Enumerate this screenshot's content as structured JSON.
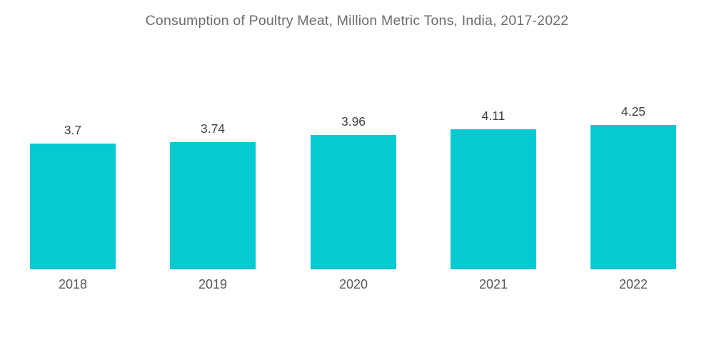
{
  "chart_data": {
    "type": "bar",
    "title": "Consumption of Poultry Meat, Million Metric Tons, India, 2017-2022",
    "categories": [
      "2018",
      "2019",
      "2020",
      "2021",
      "2022"
    ],
    "values": [
      3.7,
      3.74,
      3.96,
      4.11,
      4.25
    ],
    "data_labels": [
      "3.7",
      "3.74",
      "3.96",
      "4.11",
      "4.25"
    ],
    "xlabel": "",
    "ylabel": "",
    "ylim": [
      0,
      6.6
    ],
    "grid": false,
    "legend": false,
    "bar_color": "#06c9d2",
    "value_label_color": "#414144",
    "category_label_color": "#58595b",
    "title_color": "#6b6c6f",
    "background_color": "#ffffff"
  }
}
